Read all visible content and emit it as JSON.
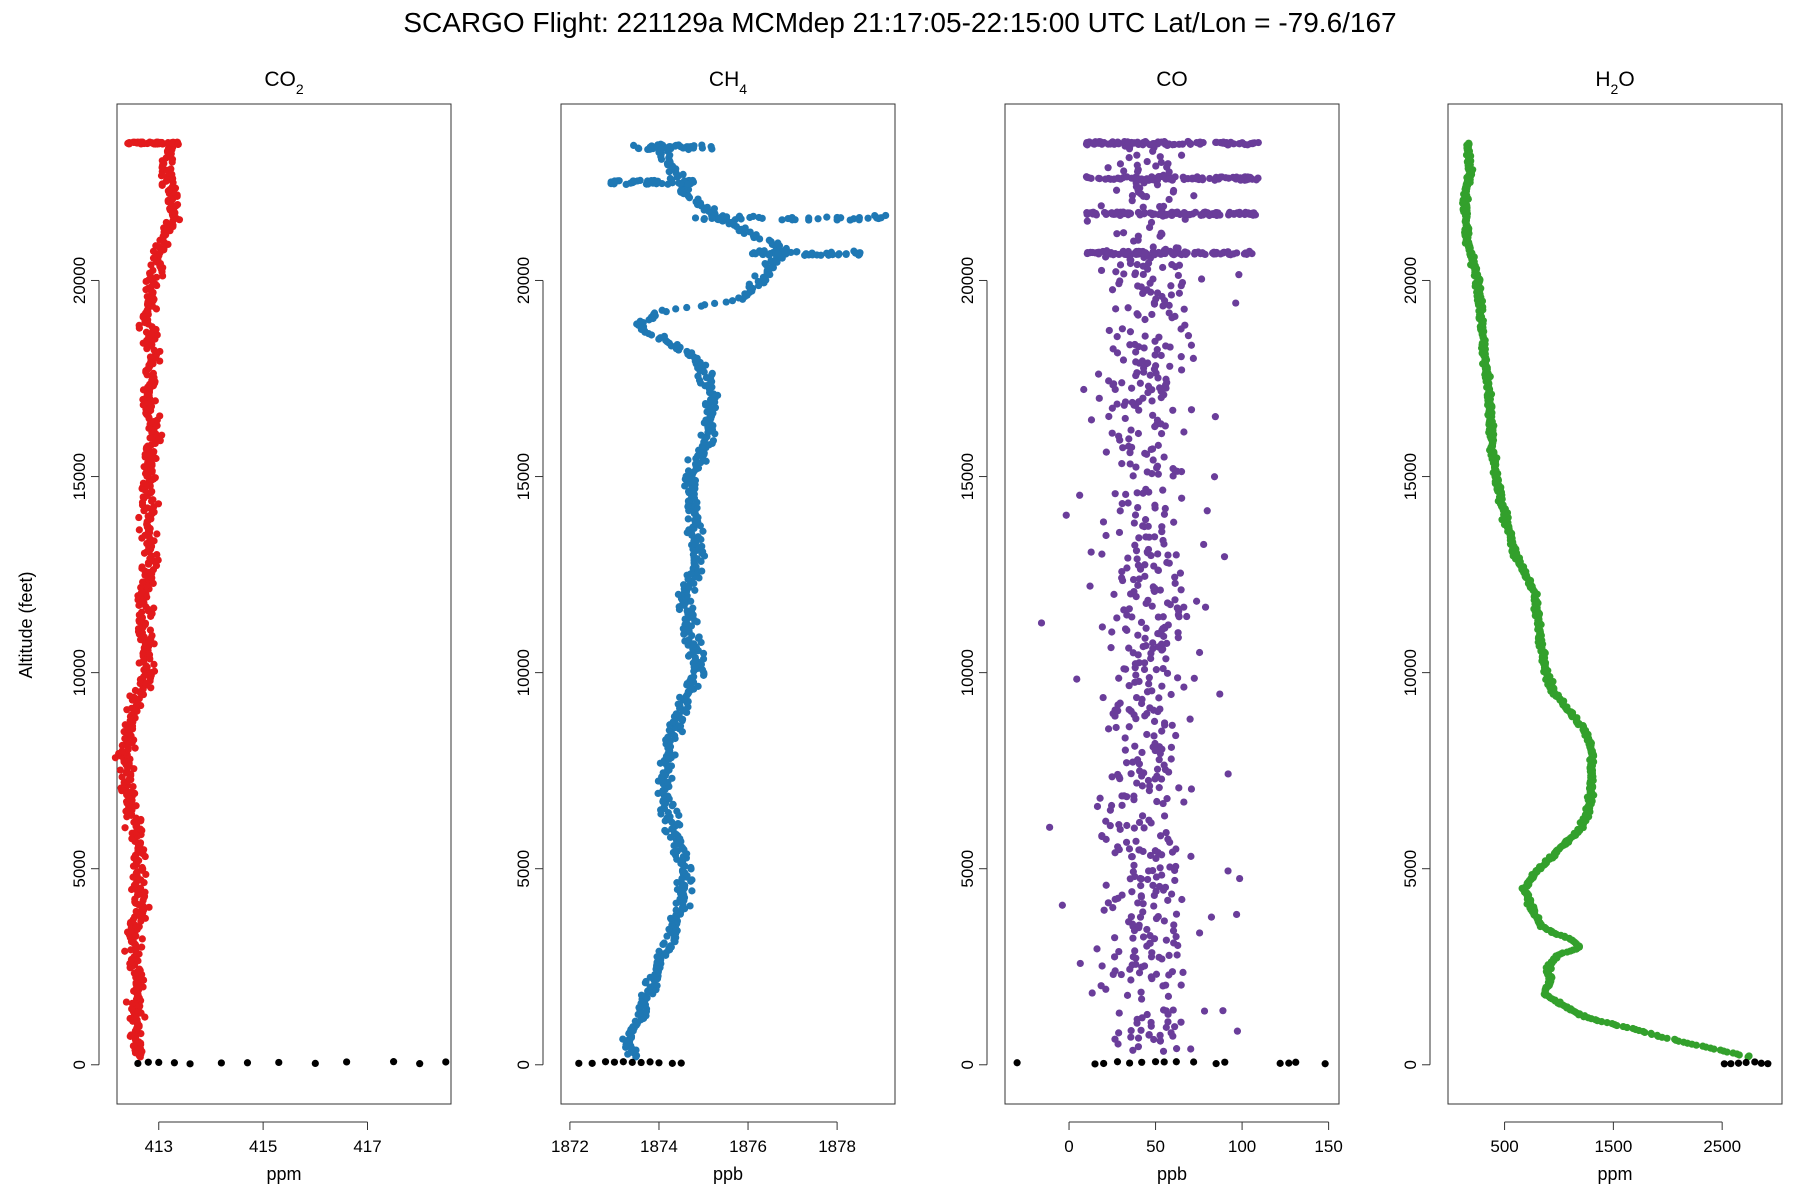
{
  "chart_data": {
    "type": "scatter",
    "title": "SCARGO Flight: 221129a  MCMdep  21:17:05-22:15:00 UTC  Lat/Lon = -79.6/167",
    "ylabel": "Altitude (feet)",
    "ylim": [
      -1000,
      24500
    ],
    "yticks": [
      0,
      5000,
      10000,
      15000,
      20000
    ],
    "yticklabels": [
      "0",
      "5000",
      "10000",
      "15000",
      "20000"
    ],
    "panels": [
      {
        "id": "co2",
        "title_main": "CO",
        "title_sub": "2",
        "xlabel": "ppm",
        "xlim": [
          412.2,
          418.6
        ],
        "xticks": [
          413,
          415,
          417
        ],
        "xticklabels": [
          "413",
          "415",
          "417"
        ],
        "color": "#e31a1c",
        "profile": [
          [
            0,
            412.55
          ],
          [
            500,
            412.6
          ],
          [
            1000,
            412.55
          ],
          [
            2000,
            412.6
          ],
          [
            3000,
            412.5
          ],
          [
            4000,
            412.65
          ],
          [
            5000,
            412.6
          ],
          [
            6000,
            412.55
          ],
          [
            7000,
            412.45
          ],
          [
            8000,
            412.35
          ],
          [
            9000,
            412.5
          ],
          [
            10000,
            412.8
          ],
          [
            11000,
            412.75
          ],
          [
            12000,
            412.7
          ],
          [
            13000,
            412.85
          ],
          [
            14000,
            412.8
          ],
          [
            15000,
            412.8
          ],
          [
            16000,
            412.9
          ],
          [
            17000,
            412.8
          ],
          [
            18000,
            412.9
          ],
          [
            19000,
            412.75
          ],
          [
            20000,
            412.9
          ],
          [
            20800,
            413.0
          ],
          [
            21500,
            413.2
          ],
          [
            22000,
            413.3
          ],
          [
            22700,
            413.1
          ],
          [
            23500,
            413.2
          ]
        ],
        "ground": [
          412.6,
          412.8,
          413.0,
          413.3,
          413.6,
          414.2,
          414.7,
          415.3,
          416.0,
          416.6,
          417.5,
          418.0,
          418.5
        ]
      },
      {
        "id": "ch4",
        "title_main": "CH",
        "title_sub": "4",
        "xlabel": "ppb",
        "xlim": [
          1871.8,
          1879.3
        ],
        "xticks": [
          1872,
          1874,
          1876,
          1878
        ],
        "xticklabels": [
          "1872",
          "1874",
          "1876",
          "1878"
        ],
        "color": "#1f78b4",
        "profile": [
          [
            0,
            1873.5
          ],
          [
            500,
            1873.3
          ],
          [
            1000,
            1873.5
          ],
          [
            2000,
            1873.8
          ],
          [
            3000,
            1874.2
          ],
          [
            4000,
            1874.5
          ],
          [
            5000,
            1874.6
          ],
          [
            6000,
            1874.3
          ],
          [
            7000,
            1874.1
          ],
          [
            8000,
            1874.2
          ],
          [
            9000,
            1874.5
          ],
          [
            10000,
            1874.9
          ],
          [
            11000,
            1874.7
          ],
          [
            12000,
            1874.6
          ],
          [
            13000,
            1874.9
          ],
          [
            14000,
            1874.8
          ],
          [
            15000,
            1874.7
          ],
          [
            16000,
            1875.1
          ],
          [
            17000,
            1875.2
          ],
          [
            18000,
            1874.9
          ],
          [
            18800,
            1873.5
          ],
          [
            19200,
            1874.0
          ],
          [
            19500,
            1875.8
          ],
          [
            20000,
            1876.3
          ],
          [
            20800,
            1876.8
          ],
          [
            21500,
            1875.5
          ],
          [
            22000,
            1874.8
          ],
          [
            23000,
            1874.2
          ],
          [
            23500,
            1874.0
          ]
        ],
        "ground": [
          1872.2,
          1872.5,
          1872.8,
          1873.0,
          1873.2,
          1873.4,
          1873.6,
          1873.8,
          1874.0,
          1874.3,
          1874.5
        ]
      },
      {
        "id": "co",
        "title_main": "CO",
        "title_sub": "",
        "xlabel": "ppb",
        "xlim": [
          -37,
          156
        ],
        "xticks": [
          0,
          50,
          100,
          150
        ],
        "xticklabels": [
          "0",
          "50",
          "100",
          "150"
        ],
        "color": "#6a3d9a",
        "profile": [
          [
            0,
            45
          ],
          [
            5000,
            45
          ],
          [
            10000,
            45
          ],
          [
            15000,
            45
          ],
          [
            20000,
            45
          ],
          [
            23500,
            45
          ]
        ],
        "ground": [
          -30,
          15,
          20,
          28,
          35,
          42,
          50,
          55,
          62,
          72,
          85,
          90,
          122,
          127,
          131,
          148
        ]
      },
      {
        "id": "h2o",
        "title_main": "H",
        "title_sub": "2",
        "title_tail": "O",
        "xlabel": "ppm",
        "xlim": [
          -20,
          3050
        ],
        "xticks": [
          500,
          1500,
          2500
        ],
        "xticklabels": [
          "500",
          "1500",
          "2500"
        ],
        "color": "#33a02c",
        "profile": [
          [
            0,
            2960
          ],
          [
            100,
            2900
          ],
          [
            300,
            2600
          ],
          [
            600,
            2100
          ],
          [
            900,
            1700
          ],
          [
            1200,
            1250
          ],
          [
            1500,
            1050
          ],
          [
            1800,
            860
          ],
          [
            2100,
            920
          ],
          [
            2500,
            900
          ],
          [
            2800,
            1000
          ],
          [
            3000,
            1200
          ],
          [
            3200,
            1100
          ],
          [
            3500,
            850
          ],
          [
            4000,
            750
          ],
          [
            4500,
            680
          ],
          [
            5000,
            820
          ],
          [
            5500,
            1000
          ],
          [
            6000,
            1200
          ],
          [
            6500,
            1270
          ],
          [
            7000,
            1300
          ],
          [
            7500,
            1300
          ],
          [
            8000,
            1300
          ],
          [
            8500,
            1250
          ],
          [
            9000,
            1100
          ],
          [
            9500,
            950
          ],
          [
            10000,
            880
          ],
          [
            11000,
            820
          ],
          [
            12000,
            780
          ],
          [
            13000,
            600
          ],
          [
            14000,
            500
          ],
          [
            15000,
            420
          ],
          [
            16000,
            380
          ],
          [
            17000,
            360
          ],
          [
            18000,
            320
          ],
          [
            19000,
            290
          ],
          [
            20000,
            250
          ],
          [
            21000,
            160
          ],
          [
            22000,
            140
          ],
          [
            22800,
            180
          ],
          [
            23500,
            160
          ]
        ],
        "ground": [
          2520,
          2580,
          2650,
          2720,
          2800,
          2860,
          2920
        ]
      }
    ]
  }
}
